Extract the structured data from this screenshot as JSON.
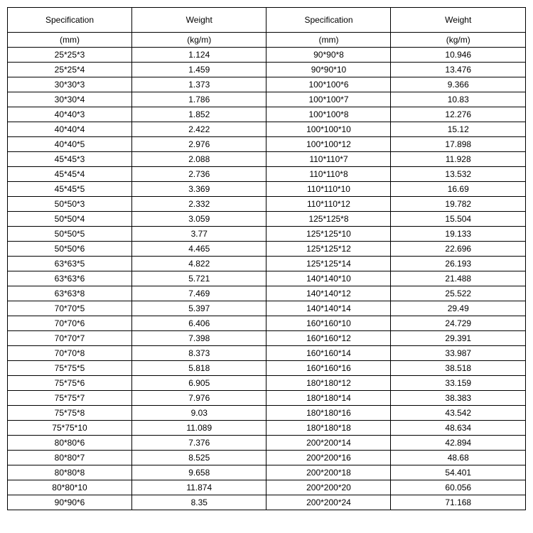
{
  "table": {
    "type": "table",
    "background_color": "#ffffff",
    "border_color": "#000000",
    "text_color": "#000000",
    "font_size": 12,
    "header_font_size": 12,
    "columns": [
      {
        "label": "Specification",
        "unit": "(mm)"
      },
      {
        "label": "Weight",
        "unit": "(kg/m)"
      },
      {
        "label": "Specification",
        "unit": "(mm)"
      },
      {
        "label": "Weight",
        "unit": "(kg/m)"
      }
    ],
    "rows": [
      [
        "25*25*3",
        "1.124",
        "90*90*8",
        "10.946"
      ],
      [
        "25*25*4",
        "1.459",
        "90*90*10",
        "13.476"
      ],
      [
        "30*30*3",
        "1.373",
        "100*100*6",
        "9.366"
      ],
      [
        "30*30*4",
        "1.786",
        "100*100*7",
        "10.83"
      ],
      [
        "40*40*3",
        "1.852",
        "100*100*8",
        "12.276"
      ],
      [
        "40*40*4",
        "2.422",
        "100*100*10",
        "15.12"
      ],
      [
        "40*40*5",
        "2.976",
        "100*100*12",
        "17.898"
      ],
      [
        "45*45*3",
        "2.088",
        "110*110*7",
        "11.928"
      ],
      [
        "45*45*4",
        "2.736",
        "110*110*8",
        "13.532"
      ],
      [
        "45*45*5",
        "3.369",
        "110*110*10",
        "16.69"
      ],
      [
        "50*50*3",
        "2.332",
        "110*110*12",
        "19.782"
      ],
      [
        "50*50*4",
        "3.059",
        "125*125*8",
        "15.504"
      ],
      [
        "50*50*5",
        "3.77",
        "125*125*10",
        "19.133"
      ],
      [
        "50*50*6",
        "4.465",
        "125*125*12",
        "22.696"
      ],
      [
        "63*63*5",
        "4.822",
        "125*125*14",
        "26.193"
      ],
      [
        "63*63*6",
        "5.721",
        "140*140*10",
        "21.488"
      ],
      [
        "63*63*8",
        "7.469",
        "140*140*12",
        "25.522"
      ],
      [
        "70*70*5",
        "5.397",
        "140*140*14",
        "29.49"
      ],
      [
        "70*70*6",
        "6.406",
        "160*160*10",
        "24.729"
      ],
      [
        "70*70*7",
        "7.398",
        "160*160*12",
        "29.391"
      ],
      [
        "70*70*8",
        "8.373",
        "160*160*14",
        "33.987"
      ],
      [
        "75*75*5",
        "5.818",
        "160*160*16",
        "38.518"
      ],
      [
        "75*75*6",
        "6.905",
        "180*180*12",
        "33.159"
      ],
      [
        "75*75*7",
        "7.976",
        "180*180*14",
        "38.383"
      ],
      [
        "75*75*8",
        "9.03",
        "180*180*16",
        "43.542"
      ],
      [
        "75*75*10",
        "11.089",
        "180*180*18",
        "48.634"
      ],
      [
        "80*80*6",
        "7.376",
        "200*200*14",
        "42.894"
      ],
      [
        "80*80*7",
        "8.525",
        "200*200*16",
        "48.68"
      ],
      [
        "80*80*8",
        "9.658",
        "200*200*18",
        "54.401"
      ],
      [
        "80*80*10",
        "11.874",
        "200*200*20",
        "60.056"
      ],
      [
        "90*90*6",
        "8.35",
        "200*200*24",
        "71.168"
      ]
    ]
  }
}
